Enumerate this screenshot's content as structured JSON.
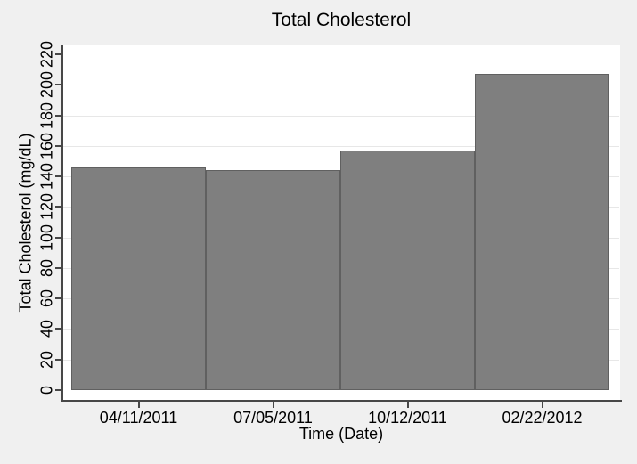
{
  "chart_data": {
    "type": "bar",
    "title": "Total Cholesterol",
    "categories": [
      "04/11/2011",
      "07/05/2011",
      "10/12/2011",
      "02/22/2012"
    ],
    "values": [
      146,
      144,
      157,
      207
    ],
    "xlabel": "Time (Date)",
    "ylabel": "Total Cholesterol (mg/dL)",
    "ylim": [
      0,
      220
    ],
    "yticks": [
      0,
      20,
      40,
      60,
      80,
      100,
      120,
      140,
      160,
      180,
      200,
      220
    ],
    "grid": "horizontal-gridlines-on",
    "legend": "none",
    "colors": {
      "bar_fill": "#7f7f7f",
      "bar_border": "#606060",
      "canvas_background": "#f0f0f0",
      "plot_background": "#ffffff",
      "gridline": "#e7e7e7",
      "axis": "#474747",
      "text": "#000000"
    }
  }
}
